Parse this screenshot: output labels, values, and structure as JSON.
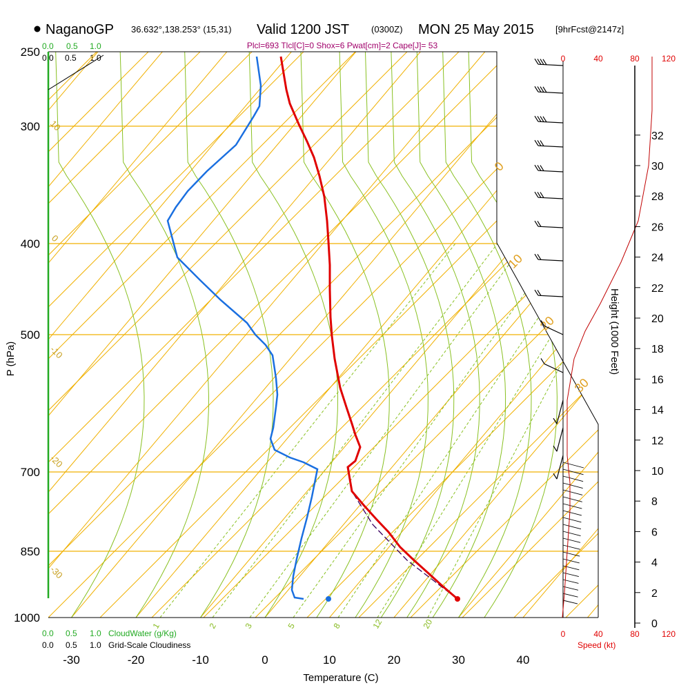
{
  "header": {
    "station": "NaganoGP",
    "coords": "36.632°,138.253° (15,31)",
    "valid": "Valid 1200 JST",
    "utc": "(0300Z)",
    "date": "MON 25 May 2015",
    "forecast": "[9hrFcst@2147z]",
    "params": "Plcl=693 Tlcl[C]=0 Shox=6 Pwat[cm]=2 Cape[J]= 53"
  },
  "legend": {
    "cloudwater_label": "CloudWater (g/Kg)",
    "cloudiness_label": "Grid-Scale Cloudiness",
    "cloudwater_ticks": [
      "0.0",
      "0.5",
      "1.0"
    ],
    "cloudiness_ticks": [
      "0.0",
      "0.5",
      "1.0"
    ]
  },
  "axes": {
    "ylabel": "P (hPa)",
    "xlabel": "Temperature (C)",
    "y2label": "Height (1000 Feet)",
    "speed_label": "Speed (kt)",
    "pressure_ticks": [
      "250",
      "300",
      "400",
      "500",
      "700",
      "850",
      "1000"
    ],
    "temp_ticks": [
      "-30",
      "-20",
      "-10",
      "0",
      "10",
      "20",
      "30",
      "40"
    ],
    "height_ticks": [
      "0",
      "2",
      "4",
      "6",
      "8",
      "10",
      "12",
      "14",
      "16",
      "18",
      "20",
      "22",
      "24",
      "26",
      "28",
      "30",
      "32"
    ],
    "speed_ticks": [
      "0",
      "40",
      "80",
      "120"
    ]
  },
  "colors": {
    "temperature": "#e00000",
    "dewpoint": "#1a6fe0",
    "parcel": "#3a0060",
    "isotherm": "#f0b000",
    "dry_adiabat": "#f0b000",
    "moist_adiabat": "#88c020",
    "mixing_ratio": "#88c020",
    "cloud_axis": "#22aa22"
  },
  "chart_data": {
    "type": "skew-t",
    "title": "NaganoGP Valid 1200 JST MON 25 May 2015",
    "pressure_range_hPa": [
      1000,
      250
    ],
    "temperature_range_C": [
      -35,
      45
    ],
    "surface_temperature_C": 29.5,
    "surface_dewpoint_C": 10,
    "isotherm_labels": [
      "0",
      "10",
      "20",
      "30"
    ],
    "dry_adiabat_labels": [
      "10",
      "0",
      "-10",
      "-20",
      "-30"
    ],
    "mixing_ratio_labels": [
      "1",
      "2",
      "3",
      "5",
      "8",
      "12",
      "20"
    ]
  }
}
